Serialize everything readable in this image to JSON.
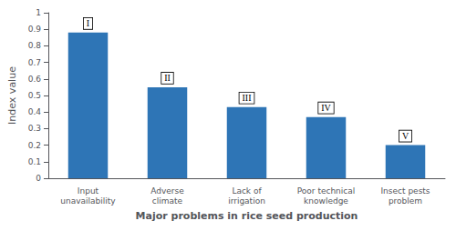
{
  "chart_data": {
    "type": "bar",
    "categories": [
      "Input\nunavailability",
      "Adverse\nclimate",
      "Lack of\nirrigation",
      "Poor technical\nknowledge",
      "Insect pests\nproblem"
    ],
    "values": [
      0.88,
      0.55,
      0.43,
      0.37,
      0.2
    ],
    "annotations": [
      "I",
      "II",
      "III",
      "IV",
      "V"
    ],
    "color": "#2E75B6",
    "xlabel": "Major problems in rice seed production",
    "ylabel": "Index value",
    "ylim": [
      0,
      1.0
    ],
    "yticks": [
      0,
      0.1,
      0.2,
      0.3,
      0.4,
      0.5,
      0.6,
      0.7,
      0.8,
      0.9,
      1
    ],
    "grid": false
  }
}
